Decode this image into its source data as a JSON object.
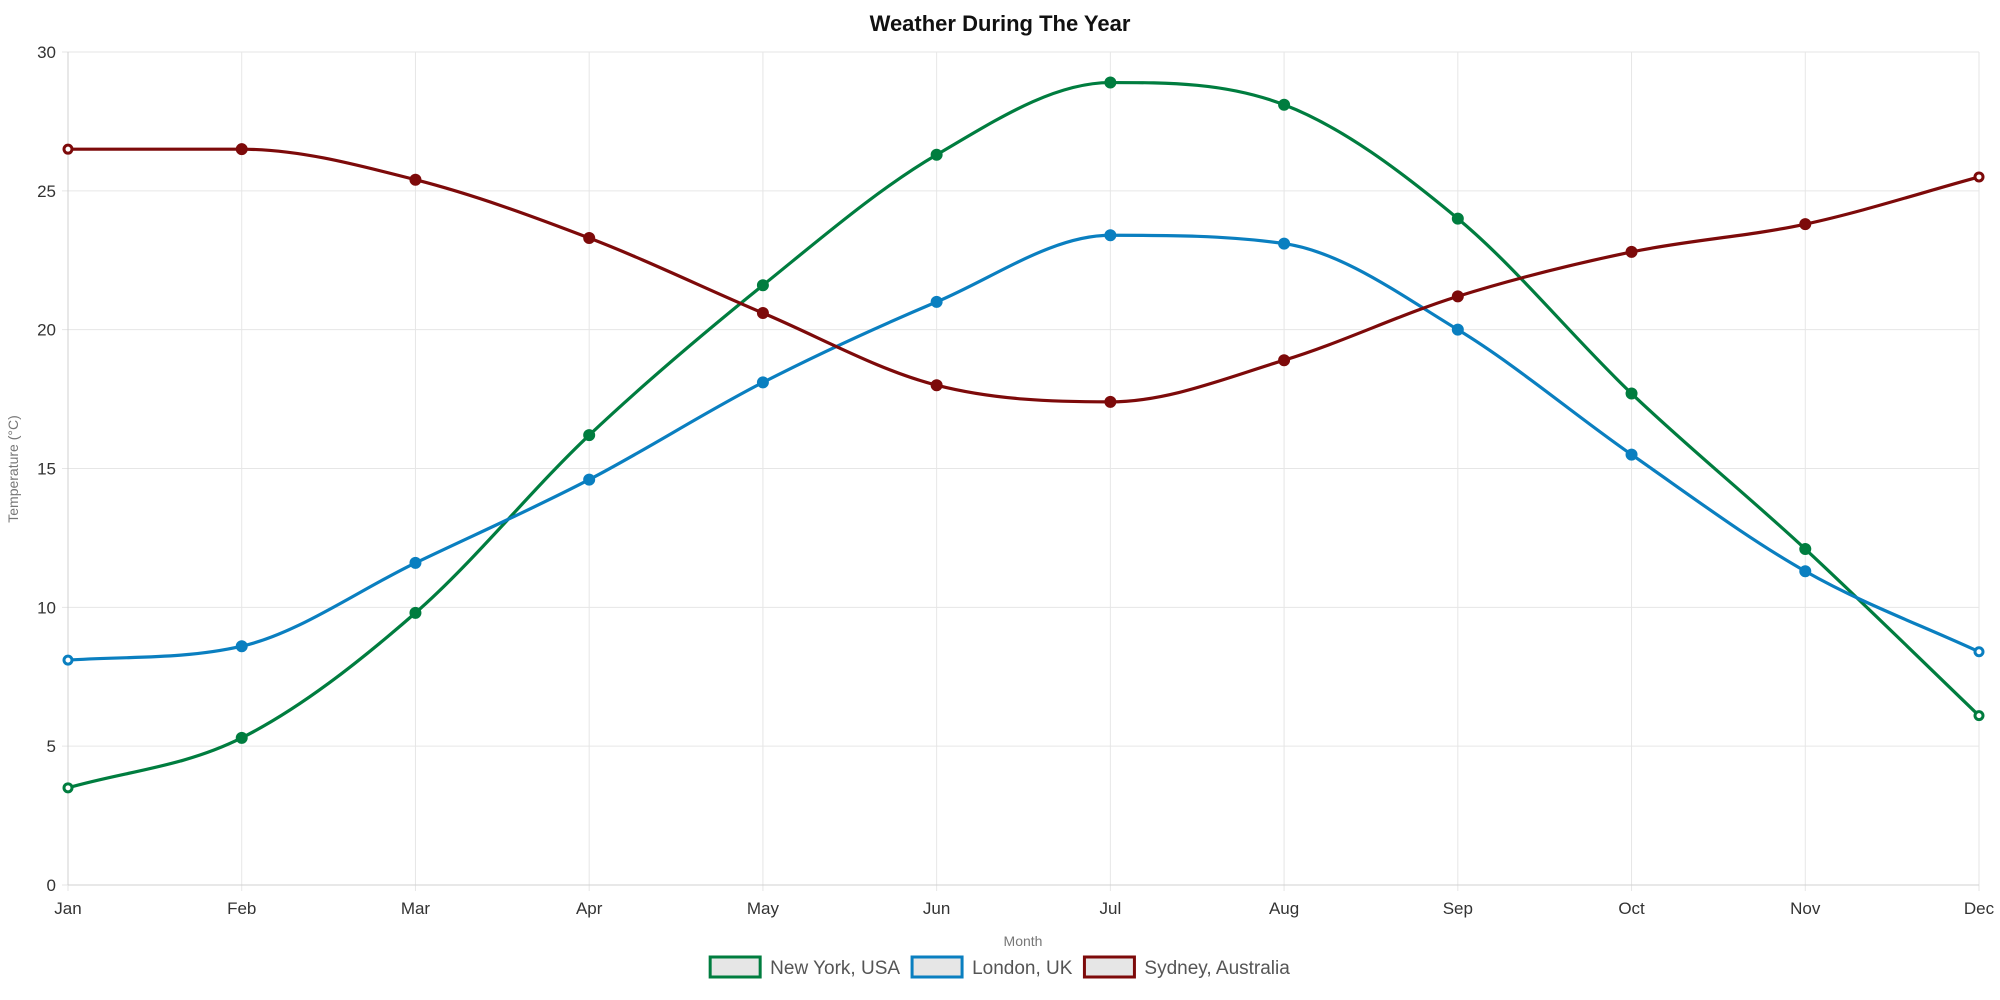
{
  "chart_data": {
    "type": "line",
    "title": "Weather During The Year",
    "xlabel": "Month",
    "ylabel": "Temperature (°C)",
    "categories": [
      "Jan",
      "Feb",
      "Mar",
      "Apr",
      "May",
      "Jun",
      "Jul",
      "Aug",
      "Sep",
      "Oct",
      "Nov",
      "Dec"
    ],
    "ylim": [
      0,
      30
    ],
    "yticks": [
      "0",
      "5",
      "10",
      "15",
      "20",
      "25",
      "30"
    ],
    "grid": true,
    "legend_position": "bottom-center",
    "series": [
      {
        "name": "New York, USA",
        "color": "#007d3f",
        "values": [
          3.5,
          5.3,
          9.8,
          16.2,
          21.6,
          26.3,
          28.9,
          28.1,
          24.0,
          17.7,
          12.1,
          6.1
        ]
      },
      {
        "name": "London, UK",
        "color": "#0a7fc0",
        "values": [
          8.1,
          8.6,
          11.6,
          14.6,
          18.1,
          21.0,
          23.4,
          23.1,
          20.0,
          15.5,
          11.3,
          8.4
        ]
      },
      {
        "name": "Sydney, Australia",
        "color": "#7d0a0a",
        "values": [
          26.5,
          26.5,
          25.4,
          23.3,
          20.6,
          18.0,
          17.4,
          18.9,
          21.2,
          22.8,
          23.8,
          25.5
        ]
      }
    ]
  }
}
